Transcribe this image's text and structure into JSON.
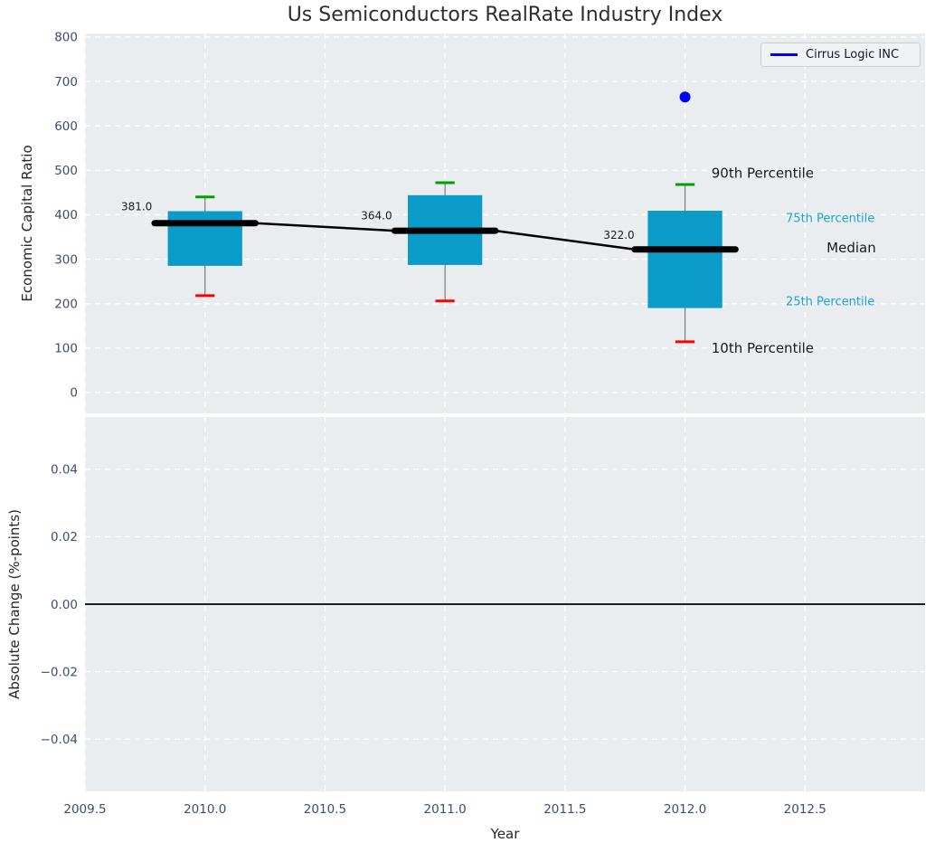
{
  "title": "Us Semiconductors RealRate Industry Index",
  "legend": {
    "label": "Cirrus Logic INC",
    "line_color": "#0000ff"
  },
  "colors": {
    "figure_bg": "#ffffff",
    "plot_bg": "#eaedf0",
    "grid": "#ffffff",
    "tick_label": "#3c4f6d",
    "box_fill": "#0a9bc9",
    "whisker": "#7a7a7a",
    "cap_top": "#00a000",
    "cap_bottom": "#ff0000",
    "median_line": "#000000",
    "outlier_dot": "#0000ff",
    "annotation_dark": "#1a1a1a",
    "annotation_cyan": "#1da2d8",
    "zero_line": "#000000"
  },
  "chart_data": [
    {
      "id": "economic-capital-ratio",
      "type": "box",
      "title": "Us Semiconductors RealRate Industry Index",
      "ylabel": "Economic Capital Ratio",
      "xlabel": "Year",
      "ylim": [
        -47,
        808
      ],
      "yticks": [
        0,
        100,
        200,
        300,
        400,
        500,
        600,
        700,
        800
      ],
      "xlim": [
        2009.5,
        2013.0
      ],
      "xticks": [
        "2009.5",
        "2010.0",
        "2010.5",
        "2011.0",
        "2011.5",
        "2012.0",
        "2012.5"
      ],
      "grid": true,
      "legend_position": "upper right",
      "boxes": [
        {
          "x": 2010,
          "p10": 218,
          "q1": 285,
          "median": 381,
          "q3": 408,
          "p90": 440,
          "median_label": "381.0"
        },
        {
          "x": 2011,
          "p10": 206,
          "q1": 287,
          "median": 364,
          "q3": 444,
          "p90": 472,
          "median_label": "364.0"
        },
        {
          "x": 2012,
          "p10": 114,
          "q1": 190,
          "median": 322,
          "q3": 409,
          "p90": 468,
          "median_label": "322.0"
        }
      ],
      "outlier_points": [
        {
          "x": 2012,
          "y": 665,
          "series": "Cirrus Logic INC"
        }
      ],
      "annotations": [
        {
          "text": "90th Percentile",
          "x": 2012.11,
          "y": 494,
          "color": "#1a1a1a",
          "size": 15,
          "anchor": "start"
        },
        {
          "text": "75th Percentile",
          "x": 2012.42,
          "y": 393,
          "color": "#1da2d8",
          "size": 13,
          "anchor": "start"
        },
        {
          "text": "Median",
          "x": 2012.59,
          "y": 326,
          "color": "#1a1a1a",
          "size": 15,
          "anchor": "start"
        },
        {
          "text": "25th Percentile",
          "x": 2012.42,
          "y": 206,
          "color": "#1da2d8",
          "size": 13,
          "anchor": "start"
        },
        {
          "text": "10th Percentile",
          "x": 2012.11,
          "y": 100,
          "color": "#1a1a1a",
          "size": 15,
          "anchor": "start"
        },
        {
          "text": "381.0",
          "x": 2009.78,
          "y": 419,
          "color": "#1a1a1a",
          "size": 12,
          "anchor": "end"
        },
        {
          "text": "364.0",
          "x": 2010.65,
          "y": 398,
          "color": "#1a1a1a",
          "size": 12,
          "anchor": "start"
        },
        {
          "text": "322.0",
          "x": 2011.66,
          "y": 354,
          "color": "#1a1a1a",
          "size": 12,
          "anchor": "start"
        }
      ]
    },
    {
      "id": "absolute-change",
      "type": "line",
      "ylabel": "Absolute Change (%-points)",
      "ylim": [
        -0.0555,
        0.0555
      ],
      "yticks": [
        0.04,
        0.02,
        0.0,
        -0.02,
        -0.04
      ],
      "ytick_labels": [
        "0.04",
        "0.02",
        "0.00",
        "−0.02",
        "−0.04"
      ],
      "grid": true,
      "zero_line": true,
      "series": []
    }
  ]
}
